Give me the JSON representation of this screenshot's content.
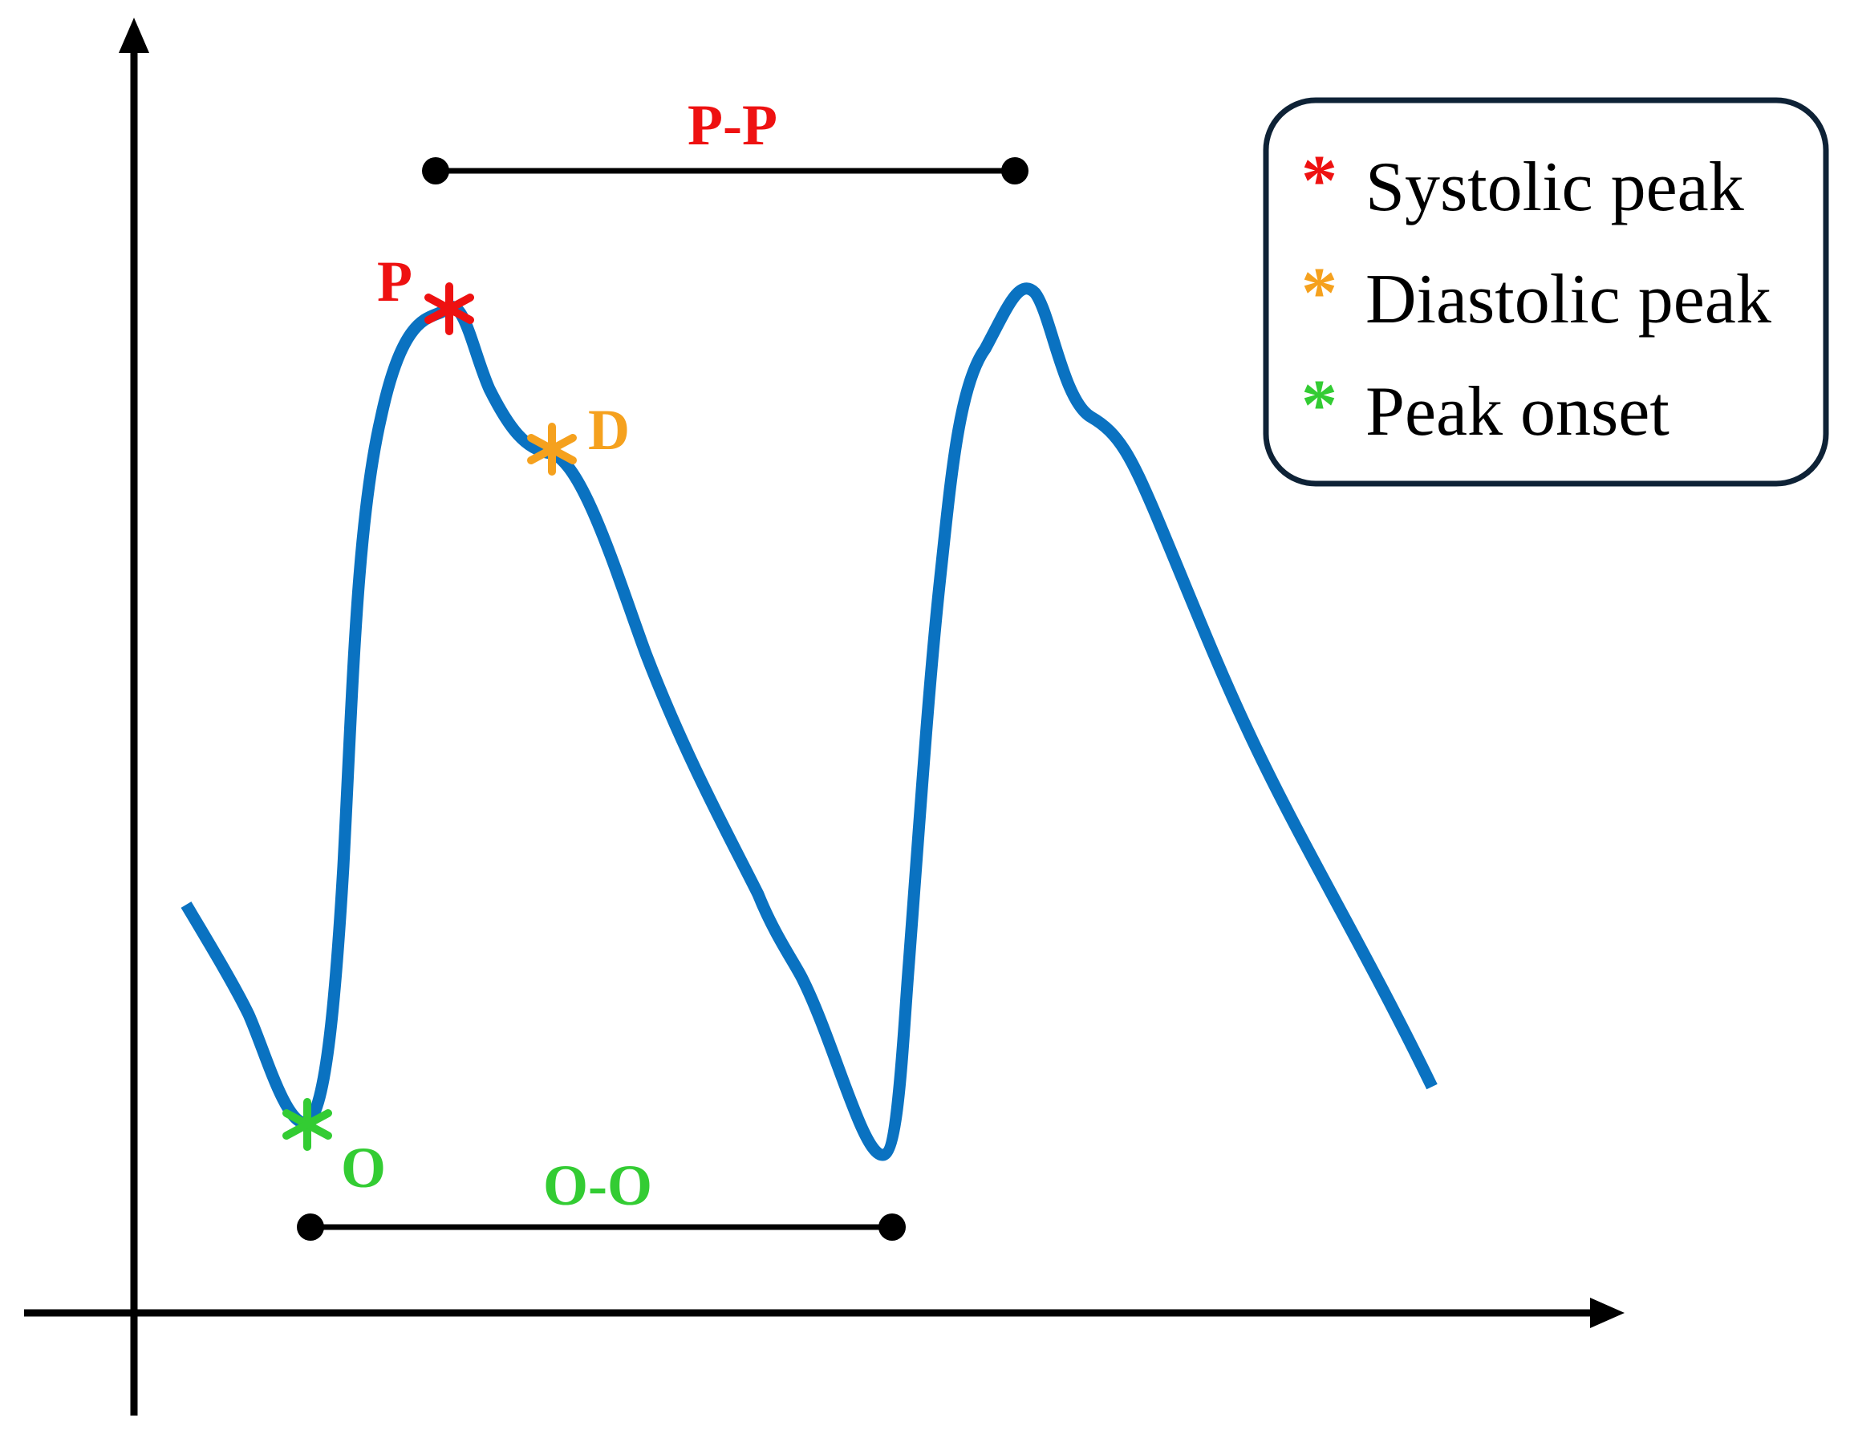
{
  "colors": {
    "signal": "#0a72c1",
    "axis": "#000000",
    "systolic": "#ee1111",
    "diastolic": "#f5a11e",
    "onset": "#33cc33",
    "legend_border": "#0e2236"
  },
  "labels": {
    "systolic_point": "P",
    "diastolic_point": "D",
    "onset_point": "O",
    "peak_to_peak": "P-P",
    "onset_to_onset": "O-O"
  },
  "legend": {
    "items": [
      {
        "symbol": "*",
        "label": "Systolic peak",
        "color": "#ee1111"
      },
      {
        "symbol": "*",
        "label": "Diastolic peak",
        "color": "#f5a11e"
      },
      {
        "symbol": "*",
        "label": "Peak onset",
        "color": "#33cc33"
      }
    ]
  },
  "icons": {
    "marker": "asterisk",
    "interval_ends": "filled-circle",
    "axis_ends": "arrowhead"
  }
}
